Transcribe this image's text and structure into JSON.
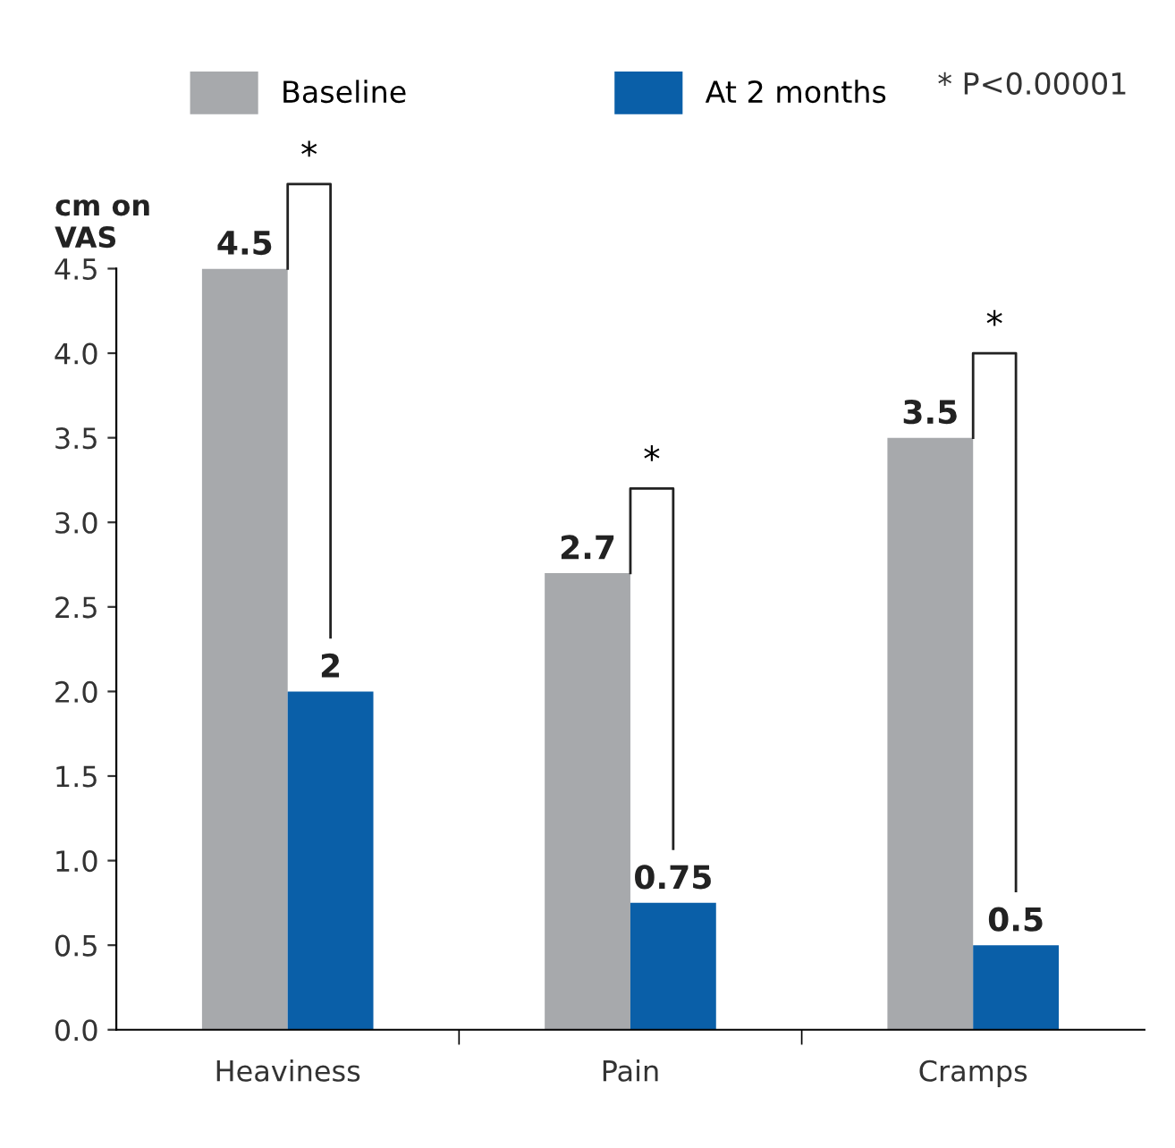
{
  "chart_data": {
    "type": "bar",
    "ylabel": "cm on\nVAS",
    "categories": [
      "Heaviness",
      "Pain",
      "Cramps"
    ],
    "series": [
      {
        "name": "Baseline",
        "color": "#a7a9ac",
        "values": [
          4.5,
          2.7,
          3.5
        ]
      },
      {
        "name": "At 2 months",
        "color": "#0a5fa8",
        "values": [
          2,
          0.75,
          0.5
        ]
      }
    ],
    "ylim": [
      0,
      4.5
    ],
    "yticks": [
      {
        "value": 0,
        "label": "0.0"
      },
      0.5,
      {
        "value": 1,
        "label": "1.0"
      },
      1.5,
      {
        "value": 2,
        "label": "2.0"
      },
      2.5,
      {
        "value": 3,
        "label": "3.0"
      },
      3.5,
      {
        "value": 4,
        "label": "4.0"
      },
      4.5
    ],
    "data_labels": true,
    "legend": "top",
    "grid": false,
    "annotations": [
      "* P<0.00001",
      "*",
      "*",
      "*"
    ]
  }
}
